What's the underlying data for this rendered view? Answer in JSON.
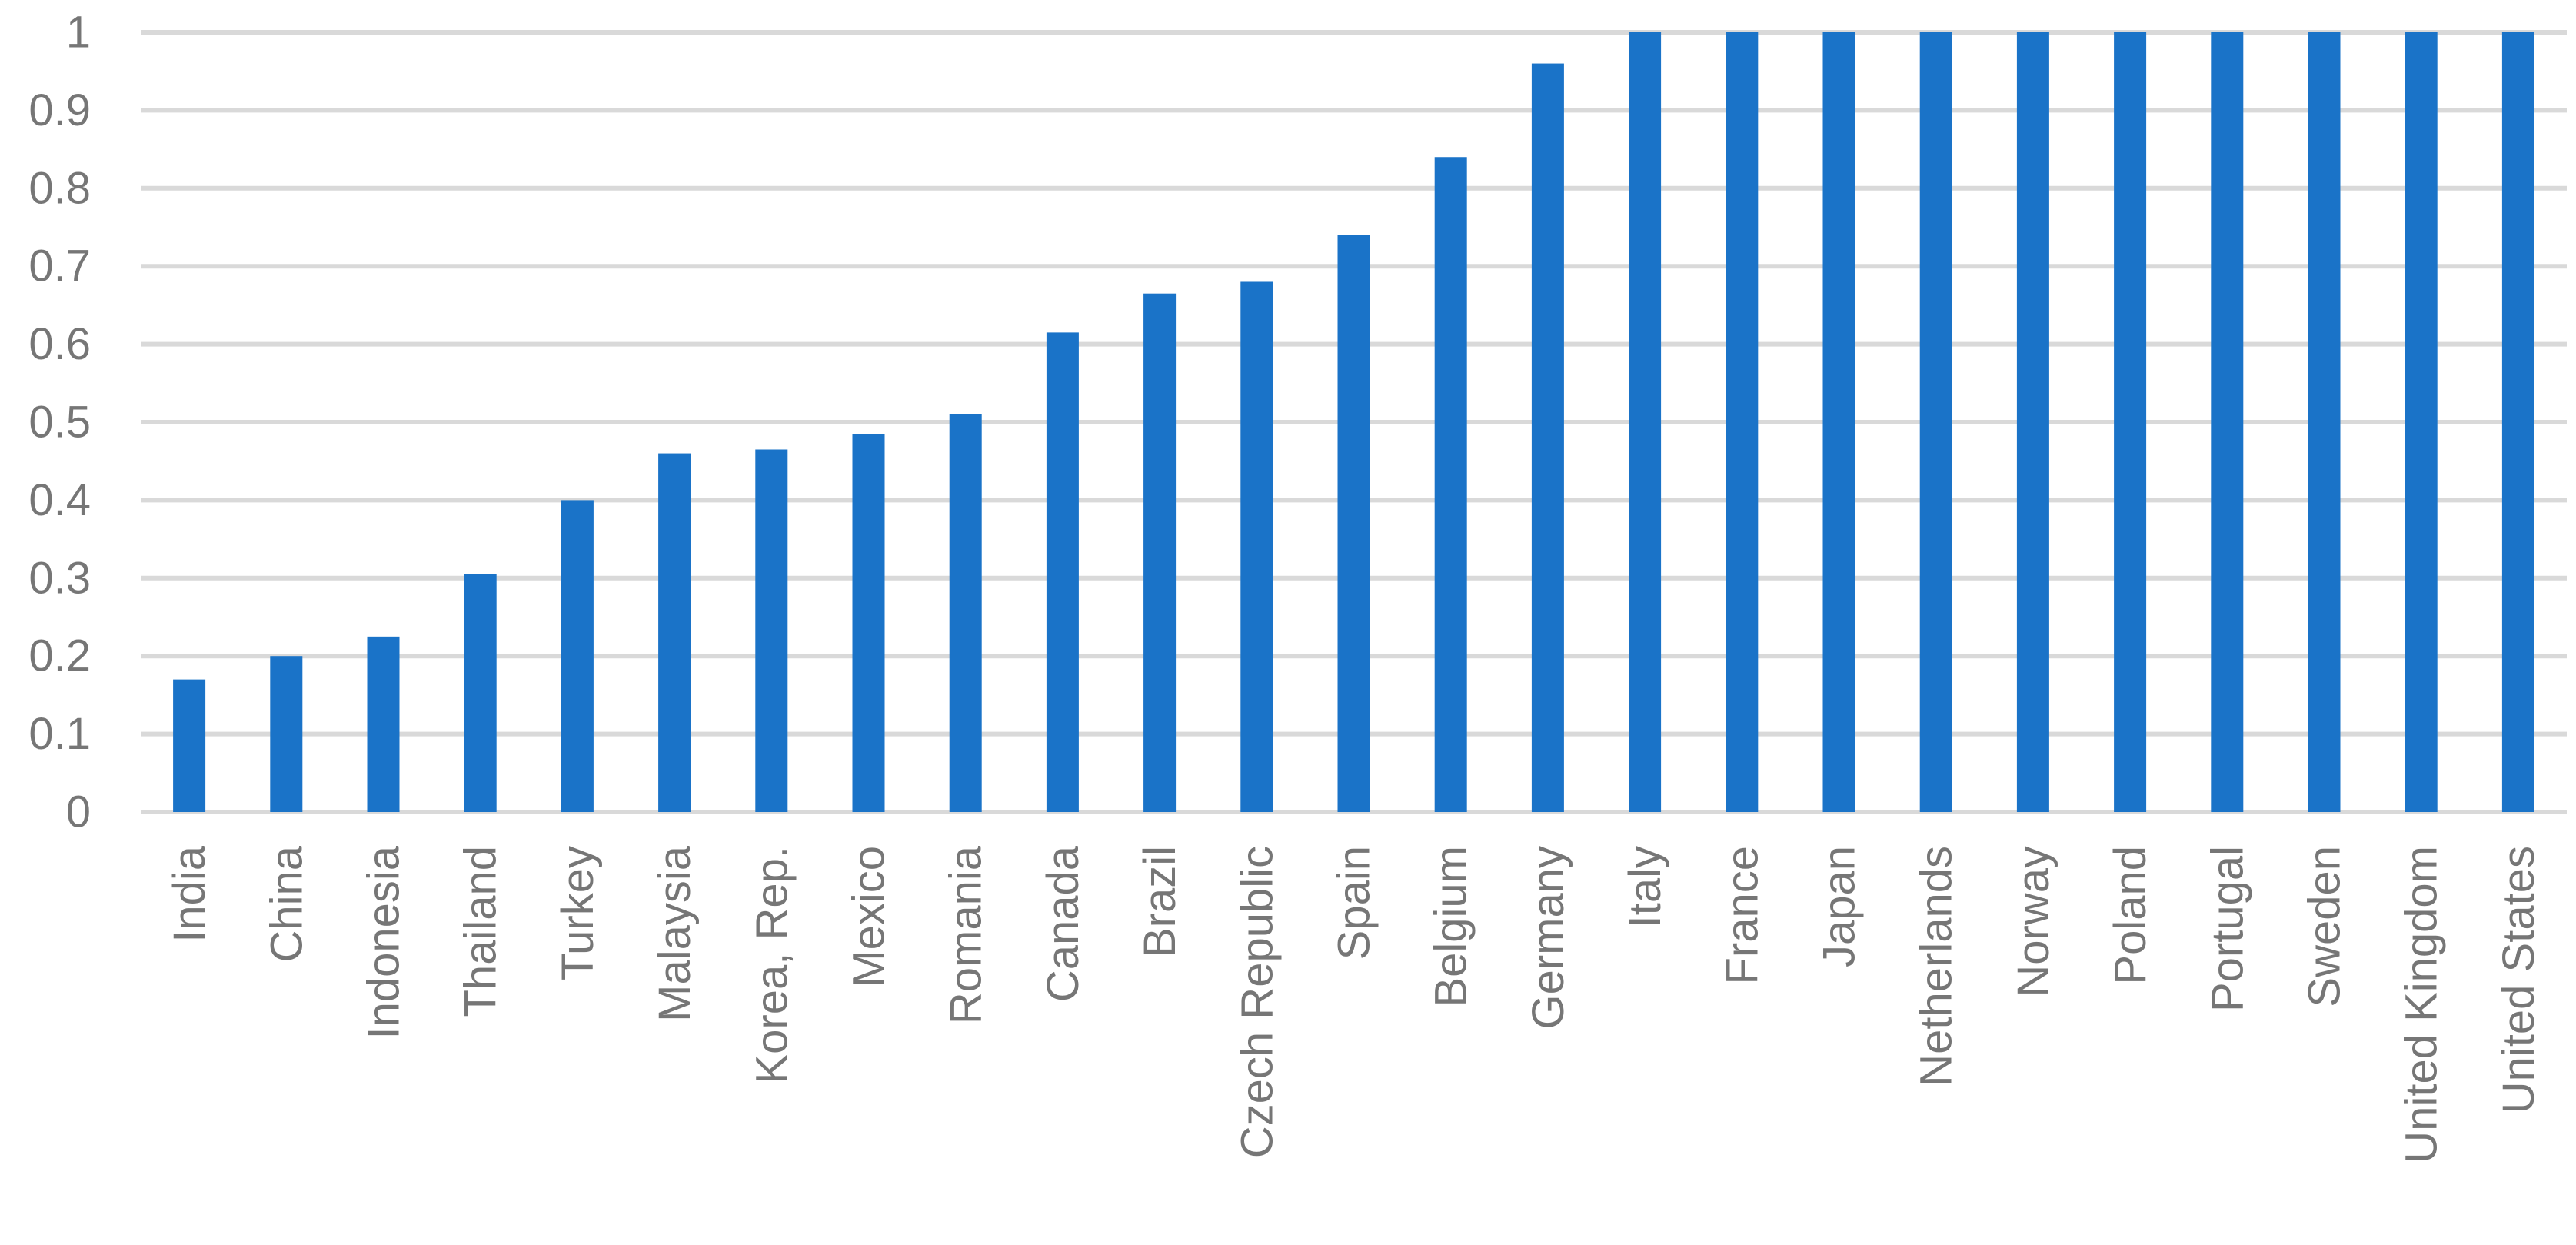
{
  "chart_data": {
    "type": "bar",
    "title": "",
    "xlabel": "",
    "ylabel": "",
    "categories": [
      "India",
      "China",
      "Indonesia",
      "Thailand",
      "Turkey",
      "Malaysia",
      "Korea, Rep.",
      "Mexico",
      "Romania",
      "Canada",
      "Brazil",
      "Czech Republic",
      "Spain",
      "Belgium",
      "Germany",
      "Italy",
      "France",
      "Japan",
      "Netherlands",
      "Norway",
      "Poland",
      "Portugal",
      "Sweden",
      "United Kingdom",
      "United States"
    ],
    "values": [
      0.17,
      0.2,
      0.225,
      0.305,
      0.4,
      0.46,
      0.465,
      0.485,
      0.51,
      0.615,
      0.665,
      0.68,
      0.74,
      0.84,
      0.96,
      1.0,
      1.0,
      1.0,
      1.0,
      1.0,
      1.0,
      1.0,
      1.0,
      1.0,
      1.0
    ],
    "ylim": [
      0,
      1
    ],
    "yticks": [
      "0",
      "0.1",
      "0.2",
      "0.3",
      "0.4",
      "0.5",
      "0.6",
      "0.7",
      "0.8",
      "0.9",
      "1"
    ],
    "grid": true,
    "legend": "none",
    "bar_color": "#1a73c8",
    "grid_color": "#d9d9d9",
    "tick_color": "#767676"
  }
}
